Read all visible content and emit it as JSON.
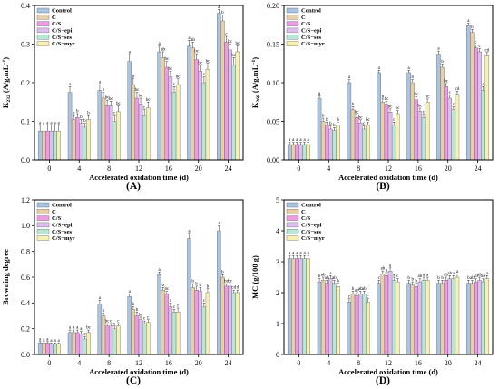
{
  "legend": [
    "Control",
    "C",
    "C/S",
    "C/S−epi",
    "C/S−ses",
    "C/S−myr"
  ],
  "colors": {
    "Control": "#aac4e4",
    "C": "#e8cfa8",
    "C/S": "#ef9be4",
    "C/S−epi": "#ddbfee",
    "C/S−ses": "#b6e8d8",
    "C/S−myr": "#f6f0b3"
  },
  "chart_data": [
    {
      "type": "bar",
      "panel": "(A)",
      "ylabel": "K232 (A/g.mL⁻¹)",
      "ylabel_main": "K",
      "ylabel_sub": "232",
      "ylabel_rest": " (A/g.mL",
      "ylabel_sup": "−1",
      "ylabel_close": ")",
      "xlabel": "Accelerated oxidation time (d)",
      "categories": [
        "0",
        "4",
        "8",
        "12",
        "16",
        "20",
        "24"
      ],
      "ylim": [
        0,
        0.4
      ],
      "yticks": [
        0,
        0.1,
        0.2,
        0.3,
        0.4
      ],
      "ytick_labels": [
        "0.0",
        "0.1",
        "0.2",
        "0.3",
        "0.4"
      ],
      "legend_position": "top-left",
      "series": [
        {
          "name": "Control",
          "values": [
            0.075,
            0.175,
            0.18,
            0.255,
            0.28,
            0.295,
            0.38
          ],
          "errors": [
            0.015,
            0.015,
            0.015,
            0.018,
            0.015,
            0.015,
            0.01
          ],
          "labels": [
            "a",
            "a",
            "a",
            "a",
            "a",
            "a",
            "a"
          ]
        },
        {
          "name": "C",
          "values": [
            0.075,
            0.105,
            0.16,
            0.195,
            0.265,
            0.29,
            0.36
          ],
          "errors": [
            0.015,
            0.01,
            0.015,
            0.015,
            0.015,
            0.015,
            0.015
          ],
          "labels": [
            "a",
            "b",
            "b",
            "b",
            "ab",
            "ab",
            "b"
          ]
        },
        {
          "name": "C/S",
          "values": [
            0.075,
            0.11,
            0.14,
            0.16,
            0.24,
            0.26,
            0.305
          ],
          "errors": [
            0.015,
            0.01,
            0.015,
            0.015,
            0.015,
            0.015,
            0.015
          ],
          "labels": [
            "a",
            "b",
            "bc",
            "bc",
            "bc",
            "bc",
            "c"
          ]
        },
        {
          "name": "C/S−epi",
          "values": [
            0.075,
            0.095,
            0.14,
            0.145,
            0.215,
            0.23,
            0.285
          ],
          "errors": [
            0.015,
            0.01,
            0.012,
            0.015,
            0.015,
            0.015,
            0.015
          ],
          "labels": [
            "a",
            "b",
            "bc",
            "bc",
            "bc",
            "bc",
            "bc"
          ]
        },
        {
          "name": "C/S−ses",
          "values": [
            0.075,
            0.085,
            0.1,
            0.115,
            0.175,
            0.2,
            0.245
          ],
          "errors": [
            0.015,
            0.01,
            0.015,
            0.015,
            0.015,
            0.015,
            0.02
          ],
          "labels": [
            "a",
            "b",
            "c",
            "c",
            "c",
            "c",
            "bc"
          ]
        },
        {
          "name": "C/S−myr",
          "values": [
            0.075,
            0.105,
            0.125,
            0.135,
            0.195,
            0.235,
            0.28
          ],
          "errors": [
            0.015,
            0.01,
            0.015,
            0.015,
            0.015,
            0.015,
            0.015
          ],
          "labels": [
            "a",
            "b",
            "bc",
            "bc",
            "bc",
            "bc",
            "bc"
          ]
        }
      ]
    },
    {
      "type": "bar",
      "panel": "(B)",
      "ylabel": "K268 (A/g.mL⁻¹)",
      "ylabel_main": "K",
      "ylabel_sub": "268",
      "ylabel_rest": " (A/g.mL",
      "ylabel_sup": "−1",
      "ylabel_close": ")",
      "xlabel": "Accelerated oxidation time (d)",
      "categories": [
        "0",
        "4",
        "8",
        "12",
        "16",
        "20",
        "24"
      ],
      "ylim": [
        0,
        0.2
      ],
      "yticks": [
        0,
        0.05,
        0.1,
        0.15,
        0.2
      ],
      "ytick_labels": [
        "0.00",
        "0.05",
        "0.10",
        "0.15",
        "0.20"
      ],
      "legend_position": "top-left",
      "series": [
        {
          "name": "Control",
          "values": [
            0.02,
            0.08,
            0.1,
            0.113,
            0.113,
            0.137,
            0.174
          ],
          "errors": [
            0.003,
            0.003,
            0.004,
            0.003,
            0.003,
            0.004,
            0.003
          ],
          "labels": [
            "a",
            "a",
            "a",
            "a",
            "a",
            "a",
            "a"
          ]
        },
        {
          "name": "C",
          "values": [
            0.02,
            0.05,
            0.065,
            0.075,
            0.1,
            0.12,
            0.165
          ],
          "errors": [
            0.003,
            0.004,
            0.004,
            0.004,
            0.004,
            0.004,
            0.004
          ],
          "labels": [
            "a",
            "b",
            "b",
            "b",
            "b",
            "b",
            "b"
          ]
        },
        {
          "name": "C/S",
          "values": [
            0.02,
            0.045,
            0.055,
            0.072,
            0.078,
            0.095,
            0.145
          ],
          "errors": [
            0.003,
            0.004,
            0.004,
            0.004,
            0.004,
            0.004,
            0.004
          ],
          "labels": [
            "a",
            "b",
            "bc",
            "bc",
            "bc",
            "bc",
            "c"
          ]
        },
        {
          "name": "C/S−epi",
          "values": [
            0.02,
            0.04,
            0.048,
            0.062,
            0.063,
            0.08,
            0.14
          ],
          "errors": [
            0.003,
            0.004,
            0.004,
            0.004,
            0.004,
            0.004,
            0.004
          ],
          "labels": [
            "a",
            "b",
            "bc",
            "bc",
            "bc",
            "c",
            "c"
          ]
        },
        {
          "name": "C/S−ses",
          "values": [
            0.02,
            0.038,
            0.04,
            0.045,
            0.055,
            0.065,
            0.09
          ],
          "errors": [
            0.003,
            0.004,
            0.004,
            0.004,
            0.004,
            0.004,
            0.005
          ],
          "labels": [
            "a",
            "b",
            "c",
            "c",
            "c",
            "c",
            "c"
          ]
        },
        {
          "name": "C/S−myr",
          "values": [
            0.02,
            0.045,
            0.045,
            0.06,
            0.075,
            0.085,
            0.135
          ],
          "errors": [
            0.003,
            0.004,
            0.004,
            0.004,
            0.004,
            0.004,
            0.004
          ],
          "labels": [
            "a",
            "b",
            "bc",
            "bc",
            "bc",
            "cd",
            "cd"
          ]
        }
      ]
    },
    {
      "type": "bar",
      "panel": "(C)",
      "ylabel": "Browning degree",
      "xlabel": "Accelerated oxidation time (d)",
      "categories": [
        "0",
        "4",
        "8",
        "12",
        "16",
        "20",
        "24"
      ],
      "ylim": [
        0,
        1.2
      ],
      "yticks": [
        0,
        0.2,
        0.4,
        0.6,
        0.8,
        1.0,
        1.2
      ],
      "ytick_labels": [
        "0.0",
        "0.2",
        "0.4",
        "0.6",
        "0.8",
        "1.0",
        "1.2"
      ],
      "legend_position": "top-left",
      "series": [
        {
          "name": "Control",
          "values": [
            0.09,
            0.17,
            0.39,
            0.45,
            0.62,
            0.9,
            0.96
          ],
          "errors": [
            0.01,
            0.02,
            0.03,
            0.02,
            0.02,
            0.04,
            0.04
          ],
          "labels": [
            "a",
            "a",
            "a",
            "a",
            "a",
            "a",
            "a"
          ]
        },
        {
          "name": "C",
          "values": [
            0.09,
            0.17,
            0.3,
            0.35,
            0.5,
            0.52,
            0.6
          ],
          "errors": [
            0.01,
            0.02,
            0.02,
            0.02,
            0.02,
            0.03,
            0.02
          ],
          "labels": [
            "a",
            "a",
            "b",
            "b",
            "b",
            "b",
            "b"
          ]
        },
        {
          "name": "C/S",
          "values": [
            0.09,
            0.17,
            0.22,
            0.3,
            0.47,
            0.5,
            0.53
          ],
          "errors": [
            0.01,
            0.02,
            0.02,
            0.03,
            0.02,
            0.03,
            0.02
          ],
          "labels": [
            "a",
            "a",
            "bc",
            "b",
            "bc",
            "b",
            "bc"
          ]
        },
        {
          "name": "C/S−epi",
          "values": [
            0.08,
            0.16,
            0.22,
            0.27,
            0.37,
            0.49,
            0.53
          ],
          "errors": [
            0.01,
            0.02,
            0.02,
            0.02,
            0.03,
            0.03,
            0.02
          ],
          "labels": [
            "a",
            "a",
            "c",
            "bc",
            "c",
            "b",
            "bc"
          ]
        },
        {
          "name": "C/S−ses",
          "values": [
            0.08,
            0.12,
            0.2,
            0.24,
            0.33,
            0.37,
            0.48
          ],
          "errors": [
            0.01,
            0.02,
            0.02,
            0.02,
            0.02,
            0.03,
            0.02
          ],
          "labels": [
            "a",
            "a",
            "c",
            "c",
            "c",
            "c",
            "cd"
          ]
        },
        {
          "name": "C/S−myr",
          "values": [
            0.08,
            0.17,
            0.22,
            0.25,
            0.33,
            0.48,
            0.48
          ],
          "errors": [
            0.01,
            0.02,
            0.02,
            0.02,
            0.03,
            0.03,
            0.02
          ],
          "labels": [
            "a",
            "bc",
            "c",
            "c",
            "c",
            "b",
            "d"
          ]
        }
      ]
    },
    {
      "type": "bar",
      "panel": "(D)",
      "ylabel": "MC (g/100 g)",
      "xlabel": "Accelerated oxidation time (d)",
      "categories": [
        "0",
        "4",
        "8",
        "12",
        "16",
        "20",
        "24"
      ],
      "ylim": [
        0,
        5
      ],
      "yticks": [
        0,
        1,
        2,
        3,
        4,
        5
      ],
      "ytick_labels": [
        "0",
        "1",
        "2",
        "3",
        "4",
        "5"
      ],
      "legend_position": "top-left",
      "series": [
        {
          "name": "Control",
          "values": [
            3.1,
            2.35,
            1.7,
            2.3,
            2.3,
            2.3,
            2.3
          ],
          "errors": [
            0.1,
            0.1,
            0.1,
            0.1,
            0.1,
            0.1,
            0.1
          ],
          "labels": [
            "a",
            "b",
            "c",
            "c",
            "b",
            "b",
            "b"
          ]
        },
        {
          "name": "C",
          "values": [
            3.1,
            2.4,
            1.95,
            2.6,
            2.25,
            2.3,
            2.3
          ],
          "errors": [
            0.1,
            0.1,
            0.1,
            0.1,
            0.1,
            0.1,
            0.1
          ],
          "labels": [
            "a",
            "ab",
            "b",
            "ab",
            "b",
            "b",
            "ab"
          ]
        },
        {
          "name": "C/S",
          "values": [
            3.1,
            2.3,
            1.9,
            2.55,
            2.2,
            2.4,
            2.35
          ],
          "errors": [
            0.1,
            0.1,
            0.1,
            0.1,
            0.1,
            0.1,
            0.1
          ],
          "labels": [
            "a",
            "ab",
            "ab",
            "a",
            "b",
            "ab",
            "ab"
          ]
        },
        {
          "name": "C/S−epi",
          "values": [
            3.1,
            2.45,
            1.95,
            2.7,
            2.35,
            2.45,
            2.4
          ],
          "errors": [
            0.1,
            0.1,
            0.1,
            0.1,
            0.1,
            0.1,
            0.1
          ],
          "labels": [
            "a",
            "a",
            "ab",
            "a",
            "ab",
            "ab",
            "ab"
          ]
        },
        {
          "name": "C/S−ses",
          "values": [
            3.1,
            2.3,
            1.95,
            2.4,
            2.4,
            2.45,
            2.35
          ],
          "errors": [
            0.1,
            0.1,
            0.1,
            0.1,
            0.1,
            0.1,
            0.1
          ],
          "labels": [
            "a",
            "ab",
            "ab",
            "a",
            "a",
            "a",
            "ab"
          ]
        },
        {
          "name": "C/S−myr",
          "values": [
            3.1,
            2.2,
            1.7,
            2.35,
            2.4,
            2.5,
            2.45
          ],
          "errors": [
            0.1,
            0.1,
            0.1,
            0.1,
            0.1,
            0.1,
            0.1
          ],
          "labels": [
            "a",
            "b",
            "c",
            "c",
            "a",
            "a",
            "a"
          ]
        }
      ]
    }
  ]
}
